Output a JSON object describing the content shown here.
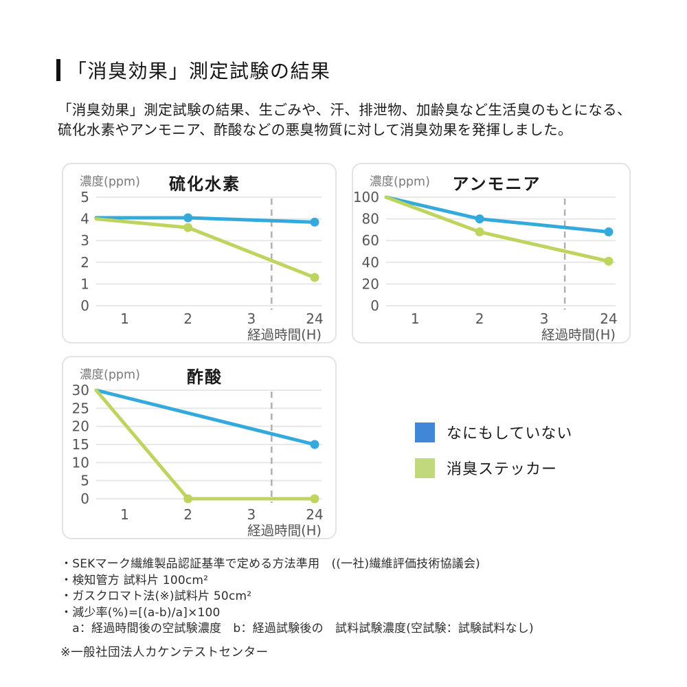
{
  "page": {
    "title": "「消臭効果」測定試験の結果",
    "intro_line1": "「消臭効果」測定試験の結果、生ごみや、汗、排泄物、加齢臭など生活臭のもとになる、",
    "intro_line2": "硫化水素やアンモニア、酢酸などの悪臭物質に対して消臭効果を発揮しました。"
  },
  "colors": {
    "blue_line": "#33a9dc",
    "green_line": "#bdd45f",
    "grid": "#e7e7e7",
    "dashed_guide": "#b0b0b0",
    "tick_text": "#555555",
    "axis_label_text": "#555555",
    "ylabel_text": "#7a7a7a",
    "chart_title_text": "#191919"
  },
  "legend": {
    "items": [
      {
        "label": "なにもしていない",
        "color": "#4187d8"
      },
      {
        "label": "消臭ステッカー",
        "color": "#c0d97c"
      }
    ]
  },
  "chart_data": [
    {
      "type": "line",
      "title": "硫化水素",
      "ylabel": "濃度(ppm)",
      "xlabel": "経過時間(H)",
      "x_tick_labels": [
        "1",
        "2",
        "3",
        "24"
      ],
      "y_ticks": [
        0,
        1,
        2,
        3,
        4,
        5
      ],
      "ylim": [
        0,
        5
      ],
      "grid": true,
      "dashed_vline_between_3_and_24": true,
      "series": [
        {
          "name": "なにもしていない",
          "color": "#33a9dc",
          "x_hours": [
            0,
            2,
            24
          ],
          "values": [
            4.05,
            4.05,
            3.85
          ],
          "marker_hours": [
            2,
            24
          ]
        },
        {
          "name": "消臭ステッカー",
          "color": "#bdd45f",
          "x_hours": [
            0,
            2,
            24
          ],
          "values": [
            4.0,
            3.6,
            1.3
          ],
          "marker_hours": [
            2,
            24
          ]
        }
      ]
    },
    {
      "type": "line",
      "title": "アンモニア",
      "ylabel": "濃度(ppm)",
      "xlabel": "経過時間(H)",
      "x_tick_labels": [
        "1",
        "2",
        "3",
        "24"
      ],
      "y_ticks": [
        0,
        20,
        40,
        60,
        80,
        100
      ],
      "ylim": [
        0,
        100
      ],
      "grid": true,
      "dashed_vline_between_3_and_24": true,
      "series": [
        {
          "name": "なにもしていない",
          "color": "#33a9dc",
          "x_hours": [
            0,
            2,
            24
          ],
          "values": [
            100,
            80,
            68
          ],
          "marker_hours": [
            2,
            24
          ]
        },
        {
          "name": "消臭ステッカー",
          "color": "#bdd45f",
          "x_hours": [
            0,
            2,
            24
          ],
          "values": [
            100,
            68,
            41
          ],
          "marker_hours": [
            2,
            24
          ]
        }
      ]
    },
    {
      "type": "line",
      "title": "酢酸",
      "ylabel": "濃度(ppm)",
      "xlabel": "経過時間(H)",
      "x_tick_labels": [
        "1",
        "2",
        "3",
        "24"
      ],
      "y_ticks": [
        0,
        5,
        10,
        15,
        20,
        25,
        30
      ],
      "ylim": [
        0,
        30
      ],
      "grid": true,
      "dashed_vline_between_3_and_24": true,
      "series": [
        {
          "name": "なにもしていない",
          "color": "#33a9dc",
          "x_hours": [
            0,
            24
          ],
          "values": [
            30,
            15
          ],
          "marker_hours": [
            24
          ]
        },
        {
          "name": "消臭ステッカー",
          "color": "#bdd45f",
          "x_hours": [
            0,
            2,
            24
          ],
          "values": [
            30,
            0,
            0
          ],
          "marker_hours": [
            2,
            24
          ]
        }
      ]
    }
  ],
  "notes": {
    "lines": [
      "・SEKマーク繊維製品認証基準で定める方法準用　((一社)繊維評価技術協議会)",
      "・検知管方 試料片 100cm²",
      "・ガスクロマト法(※)試料片 50cm²",
      "・減少率(%)=[(a-b)/a]×100",
      "　a：経過時間後の空試験濃度　b：経過試験後の　試料試験濃度(空試験：試験試料なし)"
    ],
    "footnote": "※一般社団法人カケンテストセンター"
  }
}
